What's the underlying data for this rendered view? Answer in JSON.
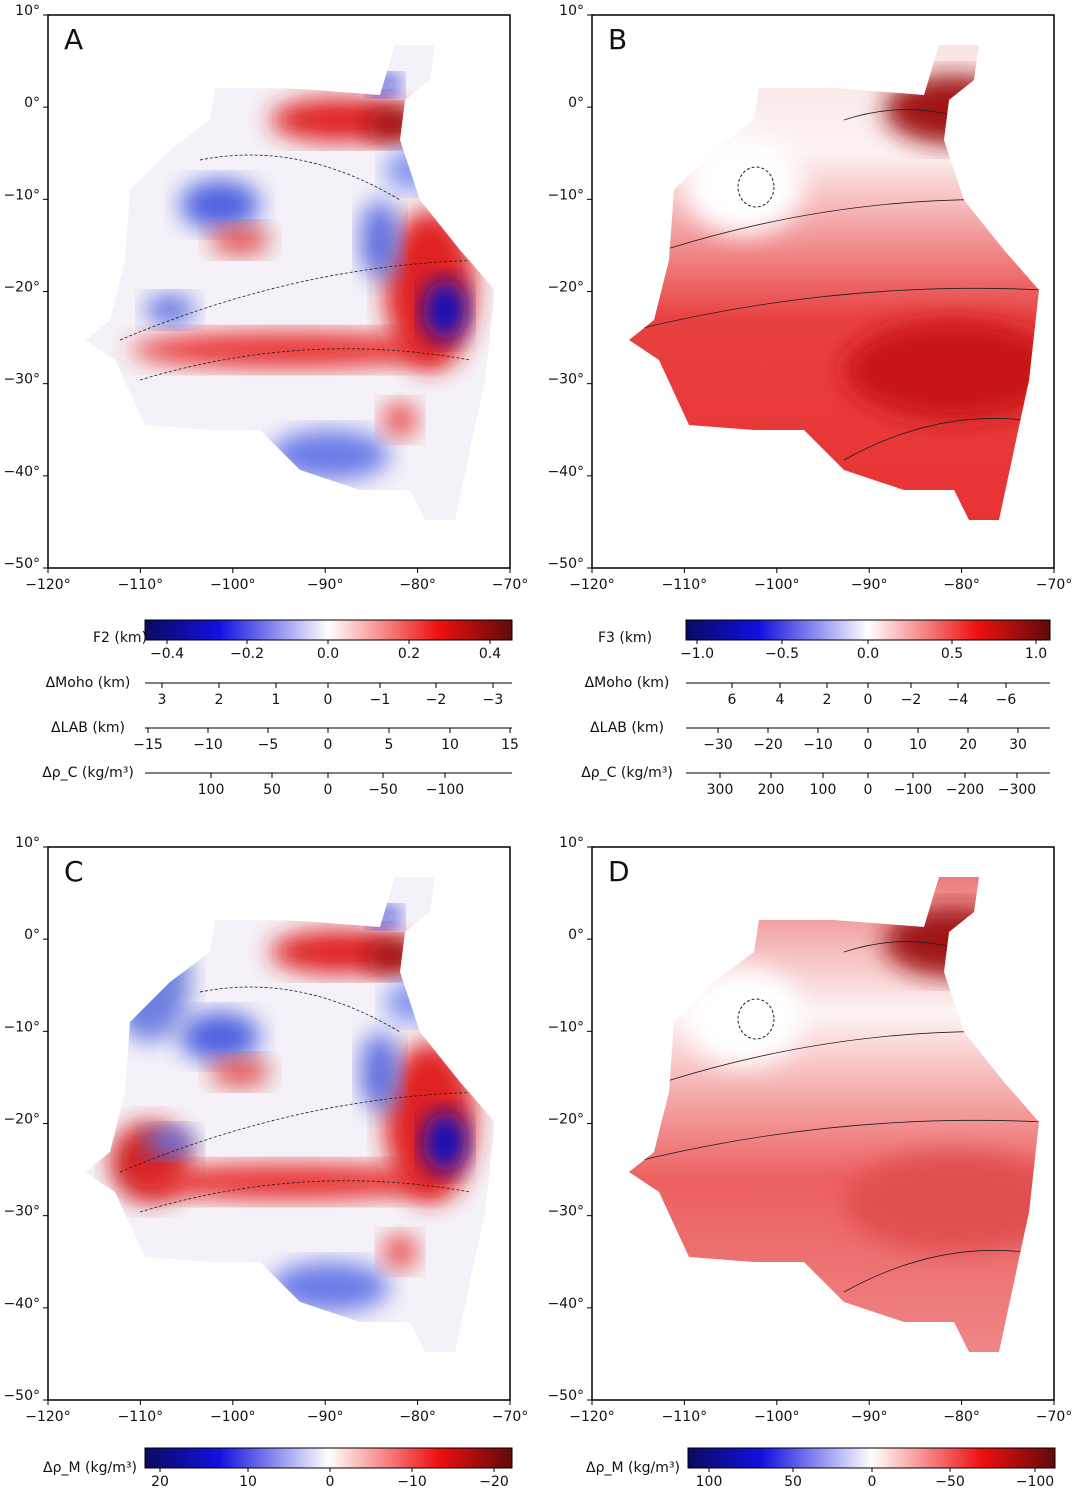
{
  "panels": [
    {
      "label": "A",
      "xticks": [
        "−120°",
        "−110°",
        "−100°",
        "−90°",
        "−80°",
        "−70°"
      ],
      "yticks": [
        "10°",
        "0°",
        "−10°",
        "−20°",
        "−30°",
        "−40°",
        "−50°"
      ]
    },
    {
      "label": "B",
      "xticks": [
        "−120°",
        "−110°",
        "−100°",
        "−90°",
        "−80°",
        "−70°"
      ],
      "yticks": [
        "10°",
        "0°",
        "−10°",
        "−20°",
        "−30°",
        "−40°",
        "−50°"
      ]
    },
    {
      "label": "C",
      "xticks": [
        "−120°",
        "−110°",
        "−100°",
        "−90°",
        "−80°",
        "−70°"
      ],
      "yticks": [
        "10°",
        "0°",
        "−10°",
        "−20°",
        "−30°",
        "−40°",
        "−50°"
      ]
    },
    {
      "label": "D",
      "xticks": [
        "−120°",
        "−110°",
        "−100°",
        "−90°",
        "−80°",
        "−70°"
      ],
      "yticks": [
        "10°",
        "0°",
        "−10°",
        "−20°",
        "−30°",
        "−40°",
        "−50°"
      ]
    }
  ],
  "colorbars": [
    {
      "title": "F2 (km)",
      "ticks": [
        "−0.4",
        "−0.2",
        "0.0",
        "0.2",
        "0.4"
      ]
    },
    {
      "title": "F3 (km)",
      "ticks": [
        "−1.0",
        "−0.5",
        "0.0",
        "0.5",
        "1.0"
      ]
    },
    {
      "title": "Δρ_M (kg/m³)",
      "ticks": [
        "20",
        "10",
        "0",
        "−10",
        "−20"
      ]
    },
    {
      "title": "Δρ_M (kg/m³)",
      "ticks": [
        "100",
        "50",
        "0",
        "−50",
        "−100"
      ]
    }
  ],
  "scales": [
    [
      {
        "title": "ΔMoho (km)",
        "ticks": [
          "3",
          "2",
          "1",
          "0",
          "−1",
          "−2",
          "−3"
        ]
      },
      {
        "title": "ΔLAB (km)",
        "ticks": [
          "−15",
          "−10",
          "−5",
          "0",
          "5",
          "10",
          "15"
        ]
      },
      {
        "title": "Δρ_C (kg/m³)",
        "ticks": [
          "100",
          "50",
          "0",
          "−50",
          "−100"
        ]
      }
    ],
    [
      {
        "title": "ΔMoho (km)",
        "ticks": [
          "6",
          "4",
          "2",
          "0",
          "−2",
          "−4",
          "−6"
        ]
      },
      {
        "title": "ΔLAB (km)",
        "ticks": [
          "−30",
          "−20",
          "−10",
          "0",
          "10",
          "20",
          "30"
        ]
      },
      {
        "title": "Δρ_C (kg/m³)",
        "ticks": [
          "300",
          "200",
          "100",
          "0",
          "−100",
          "−200",
          "−300"
        ]
      }
    ]
  ]
}
